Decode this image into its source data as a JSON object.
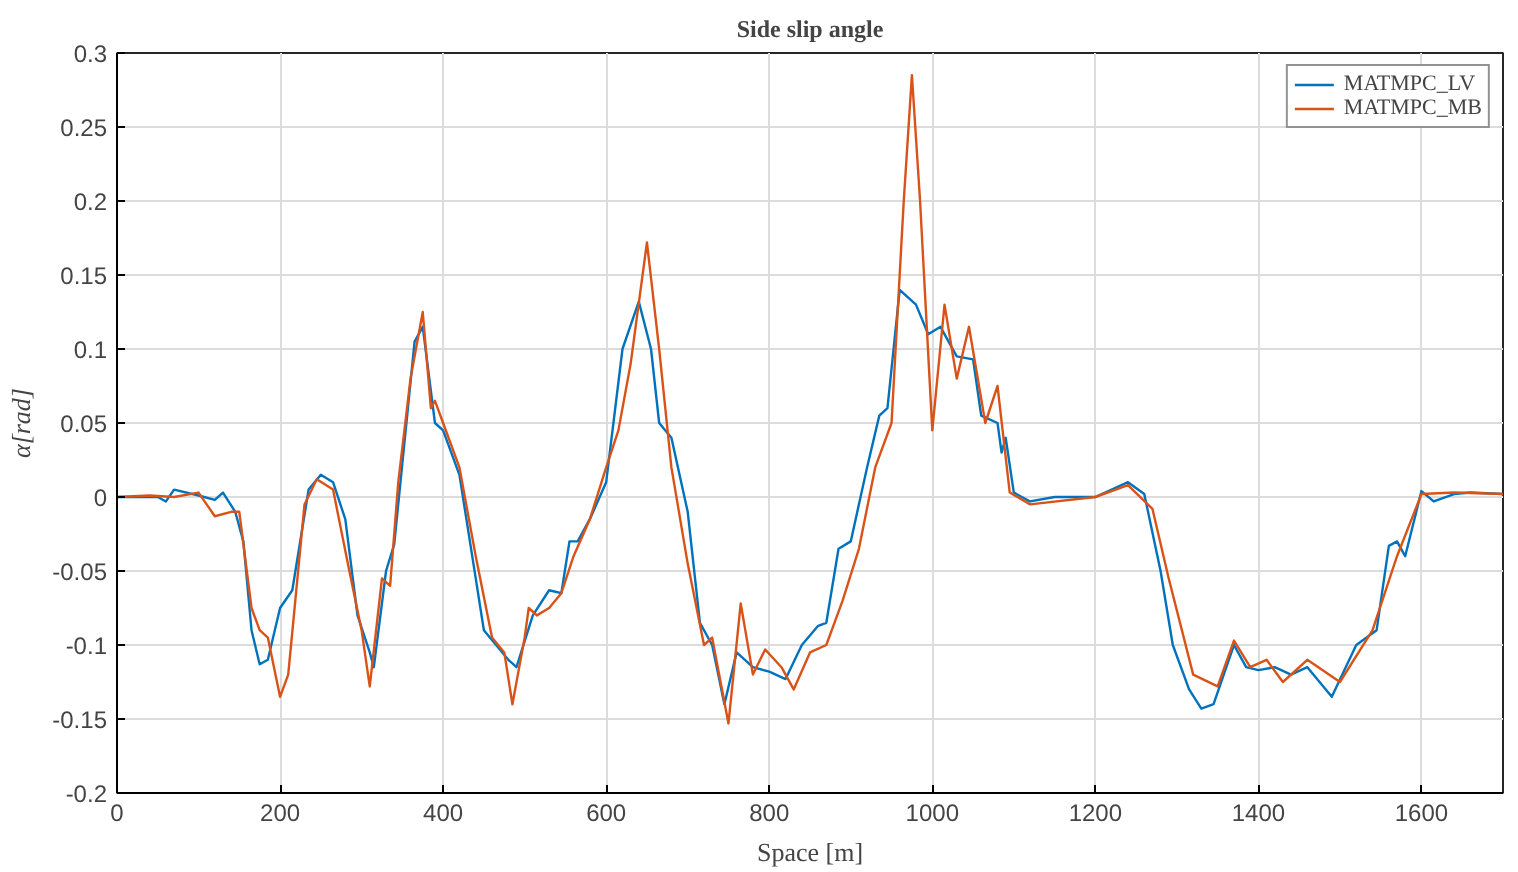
{
  "chart_data": {
    "type": "line",
    "title": "Side slip angle",
    "xlabel": "Space [m]",
    "ylabel": "α[rad]",
    "xlim": [
      0,
      1700
    ],
    "xticks": [
      0,
      200,
      400,
      600,
      800,
      1000,
      1200,
      1400,
      1600
    ],
    "ylim": [
      -0.2,
      0.3
    ],
    "yticks": [
      -0.2,
      -0.15,
      -0.1,
      -0.05,
      0,
      0.05,
      0.1,
      0.15,
      0.2,
      0.25,
      0.3
    ],
    "grid": true,
    "legend": "top right",
    "marker": "none",
    "line_style": "solid",
    "series": [
      {
        "name": "MATMPC_LV",
        "color": "#0072bd",
        "x": [
          0,
          50,
          60,
          70,
          100,
          120,
          130,
          145,
          155,
          165,
          175,
          185,
          200,
          215,
          235,
          250,
          265,
          280,
          295,
          310,
          315,
          330,
          340,
          355,
          365,
          375,
          390,
          400,
          410,
          420,
          440,
          450,
          465,
          480,
          490,
          510,
          530,
          545,
          555,
          565,
          580,
          600,
          620,
          640,
          655,
          665,
          680,
          700,
          715,
          730,
          745,
          760,
          780,
          800,
          820,
          840,
          860,
          870,
          885,
          900,
          920,
          935,
          945,
          960,
          980,
          995,
          1010,
          1030,
          1050,
          1060,
          1080,
          1085,
          1090,
          1100,
          1120,
          1150,
          1200,
          1240,
          1260,
          1280,
          1295,
          1315,
          1330,
          1345,
          1370,
          1385,
          1400,
          1420,
          1440,
          1460,
          1490,
          1520,
          1545,
          1560,
          1570,
          1580,
          1600,
          1615,
          1640,
          1660,
          1700
        ],
        "values": [
          0,
          0,
          -0.003,
          0.005,
          0.001,
          -0.002,
          0.003,
          -0.01,
          -0.03,
          -0.09,
          -0.113,
          -0.11,
          -0.075,
          -0.063,
          0.005,
          0.015,
          0.01,
          -0.015,
          -0.08,
          -0.105,
          -0.115,
          -0.05,
          -0.032,
          0.05,
          0.105,
          0.115,
          0.05,
          0.045,
          0.03,
          0.015,
          -0.055,
          -0.09,
          -0.1,
          -0.11,
          -0.115,
          -0.08,
          -0.063,
          -0.065,
          -0.03,
          -0.03,
          -0.015,
          0.01,
          0.1,
          0.132,
          0.1,
          0.05,
          0.04,
          -0.01,
          -0.085,
          -0.1,
          -0.14,
          -0.105,
          -0.115,
          -0.118,
          -0.123,
          -0.1,
          -0.087,
          -0.085,
          -0.035,
          -0.03,
          0.02,
          0.055,
          0.06,
          0.14,
          0.13,
          0.11,
          0.115,
          0.095,
          0.093,
          0.055,
          0.05,
          0.03,
          0.04,
          0.003,
          -0.003,
          0,
          0,
          0.01,
          0.002,
          -0.05,
          -0.1,
          -0.13,
          -0.143,
          -0.14,
          -0.1,
          -0.115,
          -0.117,
          -0.115,
          -0.12,
          -0.115,
          -0.135,
          -0.1,
          -0.09,
          -0.033,
          -0.03,
          -0.04,
          0.004,
          -0.003,
          0.002,
          0.003,
          0.002
        ]
      },
      {
        "name": "MATMPC_MB",
        "color": "#d95319",
        "x": [
          0,
          40,
          70,
          100,
          120,
          140,
          150,
          165,
          175,
          185,
          200,
          210,
          230,
          245,
          265,
          285,
          300,
          310,
          325,
          335,
          345,
          360,
          375,
          385,
          390,
          400,
          420,
          440,
          460,
          475,
          485,
          500,
          505,
          515,
          530,
          545,
          560,
          580,
          600,
          615,
          630,
          650,
          665,
          680,
          700,
          720,
          730,
          750,
          765,
          780,
          795,
          815,
          830,
          850,
          870,
          890,
          910,
          930,
          950,
          965,
          975,
          985,
          1000,
          1015,
          1030,
          1045,
          1065,
          1080,
          1095,
          1120,
          1200,
          1240,
          1270,
          1290,
          1320,
          1350,
          1370,
          1390,
          1410,
          1430,
          1460,
          1500,
          1540,
          1570,
          1600,
          1640,
          1700
        ],
        "values": [
          0,
          0.001,
          0,
          0.003,
          -0.013,
          -0.01,
          -0.01,
          -0.075,
          -0.09,
          -0.095,
          -0.135,
          -0.12,
          -0.005,
          0.012,
          0.005,
          -0.05,
          -0.09,
          -0.128,
          -0.055,
          -0.06,
          0.01,
          0.08,
          0.125,
          0.06,
          0.065,
          0.05,
          0.02,
          -0.04,
          -0.095,
          -0.105,
          -0.14,
          -0.095,
          -0.075,
          -0.08,
          -0.075,
          -0.065,
          -0.04,
          -0.015,
          0.02,
          0.045,
          0.09,
          0.172,
          0.1,
          0.02,
          -0.045,
          -0.1,
          -0.095,
          -0.153,
          -0.072,
          -0.12,
          -0.103,
          -0.115,
          -0.13,
          -0.105,
          -0.1,
          -0.07,
          -0.035,
          0.02,
          0.05,
          0.2,
          0.285,
          0.2,
          0.045,
          0.13,
          0.08,
          0.115,
          0.05,
          0.075,
          0.003,
          -0.005,
          0,
          0.008,
          -0.008,
          -0.055,
          -0.12,
          -0.128,
          -0.097,
          -0.115,
          -0.11,
          -0.125,
          -0.11,
          -0.125,
          -0.09,
          -0.04,
          0.002,
          0.003,
          0.002
        ]
      }
    ]
  }
}
